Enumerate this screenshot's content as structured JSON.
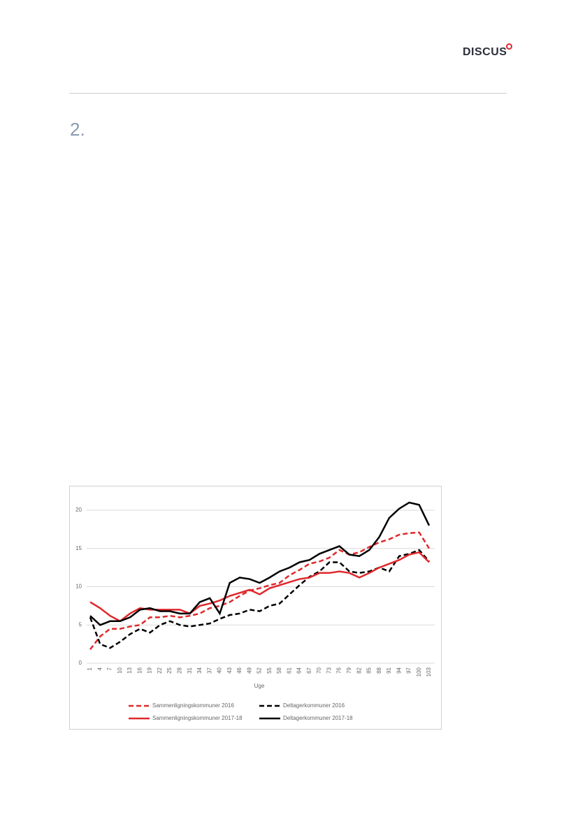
{
  "header": {
    "logo": "DISCUS"
  },
  "section": {
    "number": "2."
  },
  "chart_data": {
    "type": "line",
    "x_label": "Uge",
    "x": [
      1,
      4,
      7,
      10,
      13,
      16,
      19,
      22,
      25,
      28,
      31,
      34,
      37,
      40,
      43,
      46,
      49,
      52,
      55,
      58,
      61,
      64,
      67,
      70,
      73,
      76,
      79,
      82,
      85,
      88,
      91,
      94,
      97,
      100,
      103
    ],
    "xlim": [
      1,
      103
    ],
    "xticks": [
      1,
      4,
      7,
      10,
      13,
      16,
      19,
      22,
      25,
      28,
      31,
      34,
      37,
      40,
      43,
      46,
      49,
      52,
      55,
      58,
      61,
      64,
      67,
      70,
      73,
      76,
      79,
      82,
      85,
      88,
      91,
      94,
      97,
      100,
      103
    ],
    "ylim": [
      0,
      21.5
    ],
    "yticks": [
      0,
      5,
      10,
      15,
      20
    ],
    "grid": true,
    "legend": "bottom",
    "series": [
      {
        "name": "Sammenligningskommuner 2016",
        "color": "#e0282c",
        "style": "dashed",
        "values": [
          1.8,
          3.5,
          4.5,
          4.5,
          4.8,
          5,
          6,
          6,
          6.2,
          6,
          6.2,
          6.5,
          7.2,
          7.5,
          8,
          8.8,
          9.5,
          9.8,
          10.2,
          10.5,
          11.5,
          12.2,
          13,
          13.3,
          13.8,
          14.8,
          14.2,
          14.5,
          15.2,
          15.8,
          16.2,
          16.8,
          17,
          17.1,
          15
        ]
      },
      {
        "name": "Deltagerkommuner 2016",
        "color": "#000000",
        "style": "dashed",
        "values": [
          6,
          2.5,
          2,
          2.8,
          3.8,
          4.5,
          4,
          5,
          5.5,
          5,
          4.8,
          5,
          5.2,
          5.8,
          6.3,
          6.5,
          7,
          6.8,
          7.5,
          7.8,
          9,
          10.2,
          11.3,
          12,
          13.2,
          13.2,
          12,
          11.8,
          12,
          12.5,
          12,
          14,
          14.3,
          14.8,
          13.3
        ]
      },
      {
        "name": "Sammenligningskommuner 2017-18",
        "color": "#e0282c",
        "style": "solid",
        "values": [
          8,
          7.2,
          6.2,
          5.5,
          6.5,
          7.2,
          7,
          7,
          7,
          7,
          6.5,
          7.5,
          7.8,
          8.2,
          8.8,
          9.2,
          9.6,
          9,
          9.8,
          10.2,
          10.6,
          11,
          11.2,
          11.8,
          11.8,
          12,
          11.8,
          11.2,
          11.8,
          12.5,
          13,
          13.5,
          14.2,
          14.5,
          13.2
        ]
      },
      {
        "name": "Deltagerkommuner 2017-18",
        "color": "#000000",
        "style": "solid",
        "values": [
          6.2,
          5,
          5.5,
          5.5,
          6,
          7,
          7.2,
          6.8,
          6.8,
          6.5,
          6.5,
          8,
          8.5,
          6.5,
          10.5,
          11.2,
          11,
          10.5,
          11.2,
          12,
          12.5,
          13.2,
          13.5,
          14.3,
          14.8,
          15.3,
          14.2,
          14,
          14.8,
          16.5,
          19,
          20.2,
          21,
          20.7,
          18
        ]
      }
    ]
  }
}
